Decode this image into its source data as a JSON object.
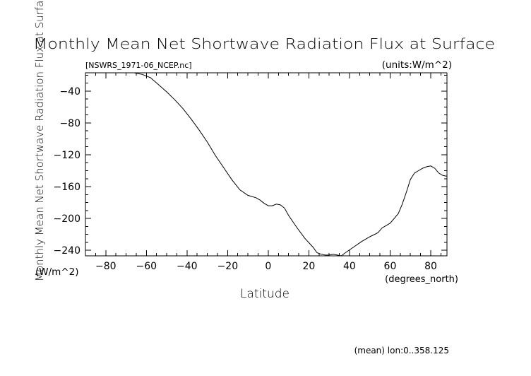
{
  "chart_data": {
    "type": "line",
    "title": "Monthly Mean Net Shortwave Radiation Flux at Surface",
    "subtitle_left": "[NSWRS_1971-06_NCEP.nc]",
    "subtitle_right": "(units:W/m^2)",
    "xlabel": "Latitude",
    "x_units": "(degrees_north)",
    "ylabel": "Monthly Mean Net Shortwave Radiation Flux at Surface",
    "y_units": "(W/m^2)",
    "footer": "(mean) lon:0..358.125",
    "xlim": [
      -90,
      88
    ],
    "ylim": [
      -247,
      -17
    ],
    "x_ticks": [
      -80,
      -60,
      -40,
      -20,
      0,
      20,
      40,
      60,
      80
    ],
    "x_tick_labels": [
      "−80",
      "−60",
      "−40",
      "−20",
      "0",
      "20",
      "40",
      "60",
      "80"
    ],
    "y_ticks": [
      -40,
      -80,
      -120,
      -160,
      -200,
      -240
    ],
    "y_tick_labels": [
      "−40",
      "−80",
      "−120",
      "−160",
      "−200",
      "−240"
    ],
    "x_minor_step": 5,
    "y_minor_step": 10,
    "grid": false,
    "series": [
      {
        "x": [
          -66,
          -62,
          -58,
          -54,
          -50,
          -46,
          -42,
          -38,
          -34,
          -30,
          -26,
          -22,
          -18,
          -14,
          -10,
          -6,
          -4,
          -2,
          0,
          2,
          4,
          6,
          8,
          10,
          14,
          18,
          22,
          24,
          26,
          28,
          30,
          32,
          34,
          36,
          38,
          42,
          46,
          50,
          54,
          56,
          60,
          64,
          66,
          68,
          70,
          72,
          74,
          76,
          78,
          80,
          82,
          84,
          86,
          88
        ],
        "y": [
          -17,
          -19,
          -23,
          -32,
          -41,
          -51,
          -62,
          -75,
          -89,
          -104,
          -121,
          -136,
          -151,
          -164,
          -171,
          -174,
          -177,
          -181,
          -184,
          -184,
          -182,
          -183,
          -187,
          -196,
          -211,
          -225,
          -236,
          -243,
          -245,
          -246,
          -246,
          -245,
          -246,
          -247,
          -243,
          -236,
          -229,
          -223,
          -218,
          -212,
          -206,
          -194,
          -182,
          -167,
          -151,
          -143,
          -140,
          -137,
          -135,
          -134,
          -137,
          -143,
          -146,
          -147
        ]
      }
    ]
  }
}
